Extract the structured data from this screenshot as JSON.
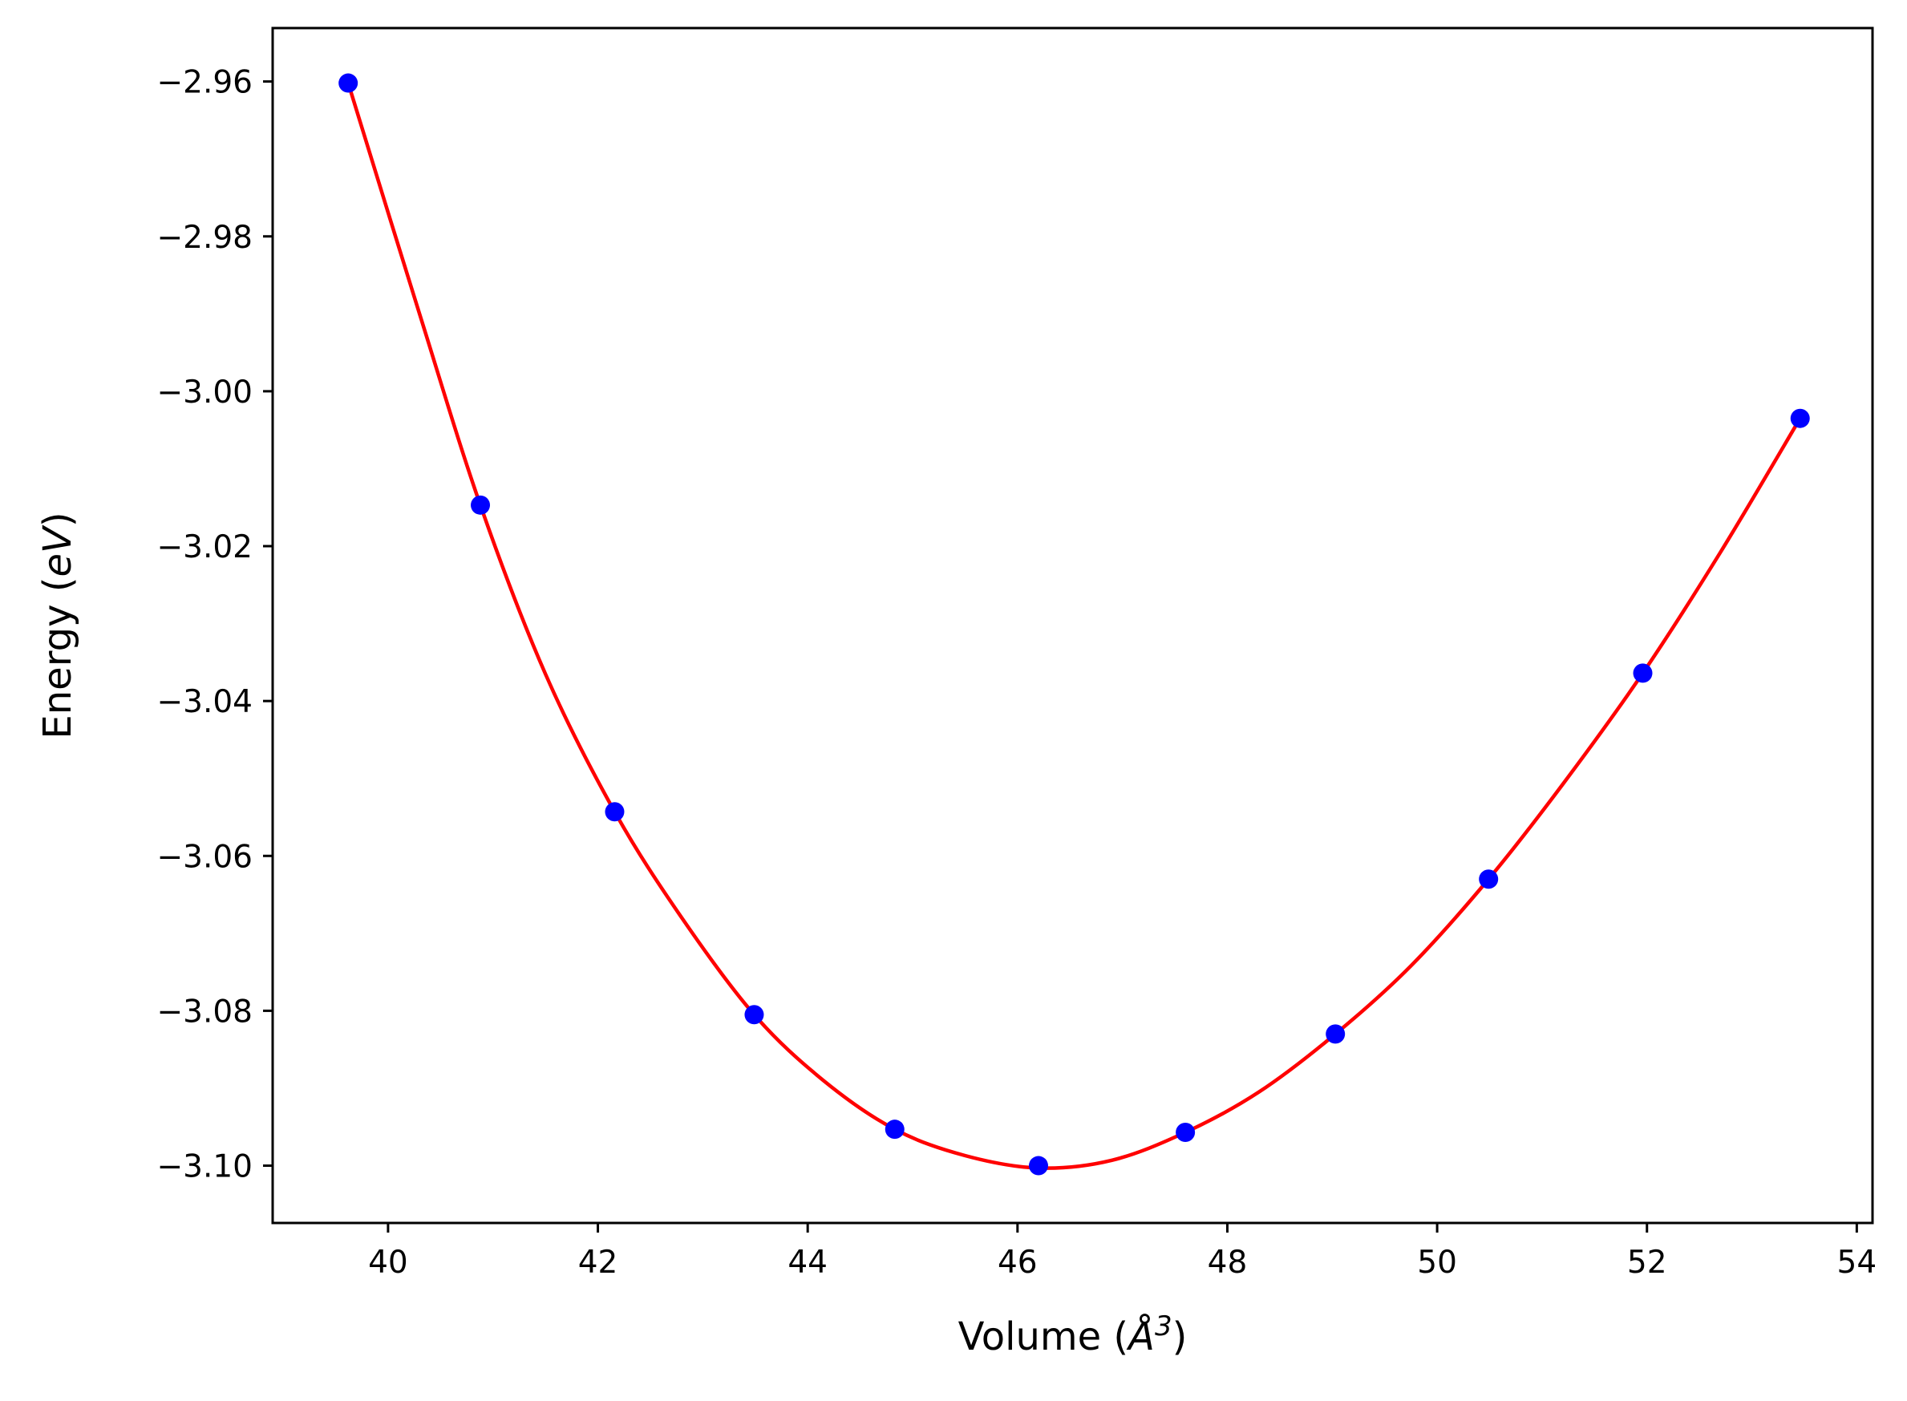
{
  "chart_data": {
    "type": "scatter",
    "xlabel_text": "Volume (",
    "xlabel_symbol": "Å",
    "xlabel_exp": "3",
    "xlabel_close": ")",
    "ylabel_text": "Energy (",
    "ylabel_unit": "eV",
    "ylabel_close": ")",
    "xlim": [
      38.9,
      54.15
    ],
    "ylim": [
      -3.1074,
      -2.9531
    ],
    "xticks": [
      40,
      42,
      44,
      46,
      48,
      50,
      52,
      54
    ],
    "yticks": [
      -2.96,
      -2.98,
      -3.0,
      -3.02,
      -3.04,
      -3.06,
      -3.08,
      -3.1
    ],
    "ytick_labels": [
      "−2.96",
      "−2.98",
      "−3.00",
      "−3.02",
      "−3.04",
      "−3.06",
      "−3.08",
      "−3.10"
    ],
    "grid": false,
    "series": [
      {
        "kind": "points",
        "color": "#0000ff",
        "x": [
          39.62,
          40.88,
          42.16,
          43.49,
          44.83,
          46.2,
          47.6,
          49.03,
          50.49,
          51.96,
          53.46
        ],
        "y": [
          -2.9602,
          -3.0147,
          -3.0543,
          -3.0805,
          -3.0953,
          -3.1,
          -3.0957,
          -3.083,
          -3.063,
          -3.0364,
          -3.0035
        ]
      },
      {
        "kind": "fit-curve",
        "color": "#ff0000",
        "x": [
          39.62,
          40.3,
          40.88,
          41.5,
          42.16,
          42.8,
          43.49,
          44.15,
          44.83,
          45.5,
          46.2,
          46.9,
          47.6,
          48.3,
          49.03,
          49.75,
          50.49,
          51.2,
          51.96,
          52.7,
          53.46
        ],
        "y": [
          -2.9602,
          -2.99,
          -3.0147,
          -3.0365,
          -3.0543,
          -3.068,
          -3.0805,
          -3.089,
          -3.0953,
          -3.0987,
          -3.1003,
          -3.0993,
          -3.0957,
          -3.0905,
          -3.083,
          -3.0742,
          -3.063,
          -3.0507,
          -3.0364,
          -3.0208,
          -3.0035
        ]
      }
    ]
  }
}
